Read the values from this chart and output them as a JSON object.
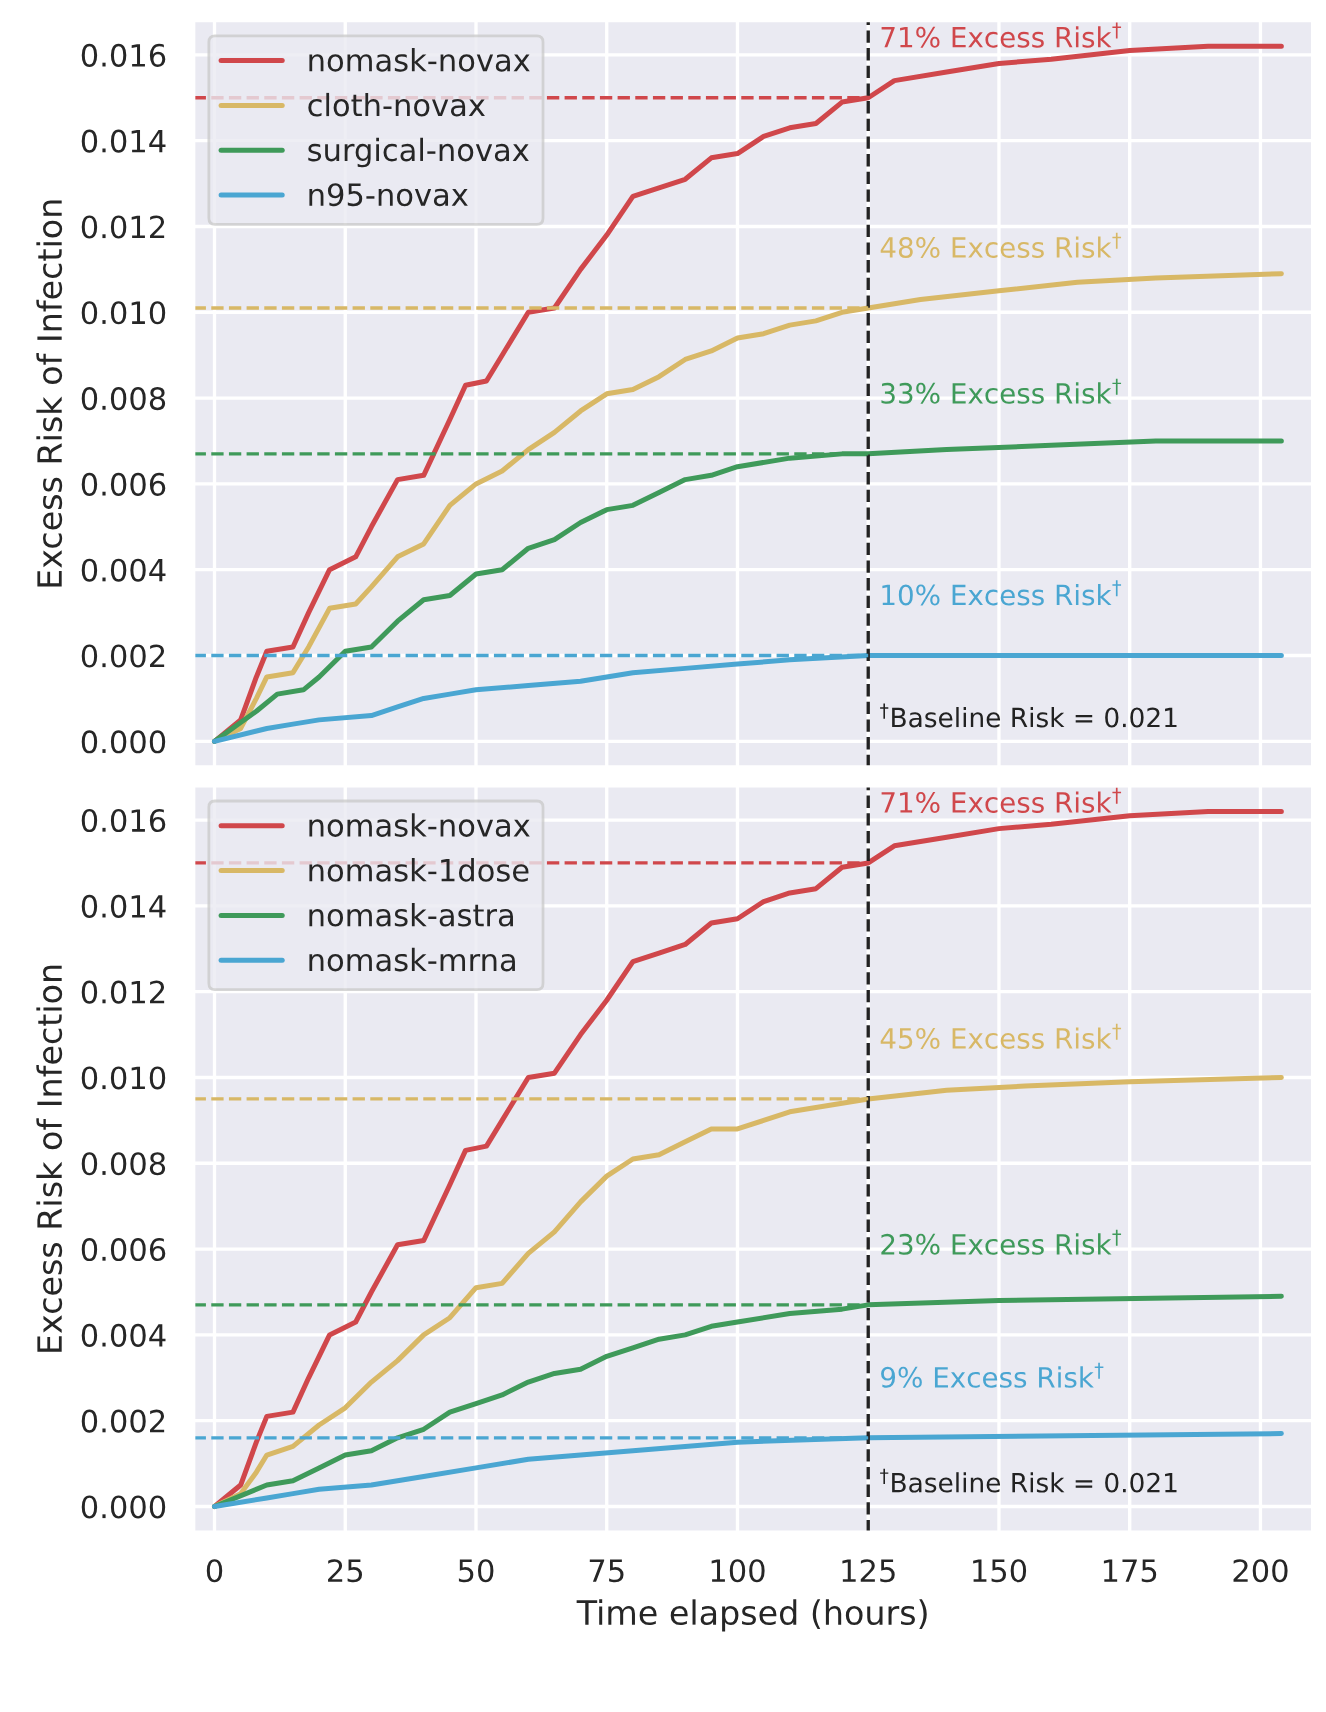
{
  "chart_data": [
    {
      "type": "line",
      "ylabel": "Excess Risk of Infection",
      "xlim": [
        -4,
        210
      ],
      "ylim": [
        -0.0006,
        0.0168
      ],
      "xticks": [
        0,
        25,
        50,
        75,
        100,
        125,
        150,
        175,
        200
      ],
      "yticks": [
        {
          "value": 0,
          "label": "0.000"
        },
        {
          "value": 0.002,
          "label": "0.002"
        },
        {
          "value": 0.004,
          "label": "0.004"
        },
        {
          "value": 0.006,
          "label": "0.006"
        },
        {
          "value": 0.008,
          "label": "0.008"
        },
        {
          "value": 0.01,
          "label": "0.010"
        },
        {
          "value": 0.012,
          "label": "0.012"
        },
        {
          "value": 0.014,
          "label": "0.014"
        },
        {
          "value": 0.016,
          "label": "0.016"
        }
      ],
      "tick_labels": "y",
      "grid": true,
      "legend": "top left",
      "series": [
        {
          "name": "nomask-novax",
          "color": "#d0474b",
          "x": [
            0,
            5,
            8,
            10,
            15,
            18,
            22,
            27,
            30,
            35,
            40,
            45,
            48,
            52,
            55,
            60,
            65,
            70,
            75,
            80,
            85,
            90,
            95,
            100,
            105,
            110,
            115,
            120,
            125,
            130,
            140,
            150,
            160,
            175,
            190,
            204
          ],
          "values": [
            0,
            0.0005,
            0.0015,
            0.0021,
            0.0022,
            0.003,
            0.004,
            0.0043,
            0.005,
            0.0061,
            0.0062,
            0.0075,
            0.0083,
            0.0084,
            0.009,
            0.01,
            0.0101,
            0.011,
            0.0118,
            0.0127,
            0.0129,
            0.0131,
            0.0136,
            0.0137,
            0.0141,
            0.0143,
            0.0144,
            0.0149,
            0.015,
            0.0154,
            0.0156,
            0.0158,
            0.0159,
            0.0161,
            0.0162,
            0.0162
          ]
        },
        {
          "name": "cloth-novax",
          "color": "#d8b866",
          "x": [
            0,
            5,
            8,
            10,
            15,
            18,
            22,
            27,
            30,
            35,
            40,
            45,
            50,
            55,
            60,
            65,
            70,
            75,
            80,
            85,
            90,
            95,
            100,
            105,
            110,
            115,
            120,
            125,
            135,
            150,
            165,
            180,
            204
          ],
          "values": [
            0,
            0.0003,
            0.001,
            0.0015,
            0.0016,
            0.0022,
            0.0031,
            0.0032,
            0.0036,
            0.0043,
            0.0046,
            0.0055,
            0.006,
            0.0063,
            0.0068,
            0.0072,
            0.0077,
            0.0081,
            0.0082,
            0.0085,
            0.0089,
            0.0091,
            0.0094,
            0.0095,
            0.0097,
            0.0098,
            0.01,
            0.0101,
            0.0103,
            0.0105,
            0.0107,
            0.0108,
            0.0109
          ]
        },
        {
          "name": "surgical-novax",
          "color": "#3f9a5a",
          "x": [
            0,
            8,
            12,
            17,
            20,
            25,
            30,
            35,
            40,
            45,
            50,
            55,
            60,
            65,
            70,
            75,
            80,
            85,
            90,
            95,
            100,
            110,
            120,
            125,
            140,
            160,
            180,
            204
          ],
          "values": [
            0,
            0.0007,
            0.0011,
            0.0012,
            0.0015,
            0.0021,
            0.0022,
            0.0028,
            0.0033,
            0.0034,
            0.0039,
            0.004,
            0.0045,
            0.0047,
            0.0051,
            0.0054,
            0.0055,
            0.0058,
            0.0061,
            0.0062,
            0.0064,
            0.0066,
            0.0067,
            0.0067,
            0.0068,
            0.0069,
            0.007,
            0.007
          ]
        },
        {
          "name": "n95-novax",
          "color": "#4aa6d2",
          "x": [
            0,
            10,
            15,
            20,
            30,
            35,
            40,
            45,
            50,
            60,
            70,
            80,
            90,
            100,
            110,
            125,
            150,
            204
          ],
          "values": [
            0,
            0.0003,
            0.0004,
            0.0005,
            0.0006,
            0.0008,
            0.001,
            0.0011,
            0.0012,
            0.0013,
            0.0014,
            0.0016,
            0.0017,
            0.0018,
            0.0019,
            0.002,
            0.002,
            0.002
          ]
        }
      ],
      "ref_lines": [
        {
          "axis": "x",
          "value": 125,
          "color": "#222222",
          "line_style": "dashed"
        },
        {
          "axis": "y",
          "value": 0.015,
          "label": "71% Excess Risk$^{†}$",
          "color": "#d0474b",
          "line_style": "dashed"
        },
        {
          "axis": "y",
          "value": 0.0101,
          "label": "48% Excess Risk$^{†}$",
          "color": "#d8b866",
          "line_style": "dashed"
        },
        {
          "axis": "y",
          "value": 0.0067,
          "label": "33% Excess Risk$^{†}$",
          "color": "#3f9a5a",
          "line_style": "dashed"
        },
        {
          "axis": "y",
          "value": 0.002,
          "label": "10% Excess Risk$^{†}$",
          "color": "#4aa6d2",
          "line_style": "dashed"
        }
      ],
      "annotations": [
        {
          "text": "$^{†}$Baseline Risk = 0.021",
          "x": 125,
          "y": 0.0002
        }
      ]
    },
    {
      "type": "line",
      "xlabel": "Time elapsed (hours)",
      "ylabel": "Excess Risk of Infection",
      "xlim": [
        -4,
        210
      ],
      "ylim": [
        -0.0006,
        0.0168
      ],
      "xticks": [
        0,
        25,
        50,
        75,
        100,
        125,
        150,
        175,
        200
      ],
      "yticks": [
        {
          "value": 0,
          "label": "0.000"
        },
        {
          "value": 0.002,
          "label": "0.002"
        },
        {
          "value": 0.004,
          "label": "0.004"
        },
        {
          "value": 0.006,
          "label": "0.006"
        },
        {
          "value": 0.008,
          "label": "0.008"
        },
        {
          "value": 0.01,
          "label": "0.010"
        },
        {
          "value": 0.012,
          "label": "0.012"
        },
        {
          "value": 0.014,
          "label": "0.014"
        },
        {
          "value": 0.016,
          "label": "0.016"
        }
      ],
      "grid": true,
      "legend": "top left",
      "series": [
        {
          "name": "nomask-novax",
          "color": "#d0474b",
          "x": [
            0,
            5,
            8,
            10,
            15,
            18,
            22,
            27,
            30,
            35,
            40,
            45,
            48,
            52,
            55,
            60,
            65,
            70,
            75,
            80,
            85,
            90,
            95,
            100,
            105,
            110,
            115,
            120,
            125,
            130,
            140,
            150,
            160,
            175,
            190,
            204
          ],
          "values": [
            0,
            0.0005,
            0.0015,
            0.0021,
            0.0022,
            0.003,
            0.004,
            0.0043,
            0.005,
            0.0061,
            0.0062,
            0.0075,
            0.0083,
            0.0084,
            0.009,
            0.01,
            0.0101,
            0.011,
            0.0118,
            0.0127,
            0.0129,
            0.0131,
            0.0136,
            0.0137,
            0.0141,
            0.0143,
            0.0144,
            0.0149,
            0.015,
            0.0154,
            0.0156,
            0.0158,
            0.0159,
            0.0161,
            0.0162,
            0.0162
          ]
        },
        {
          "name": "nomask-1dose",
          "color": "#d8b866",
          "x": [
            0,
            5,
            8,
            10,
            15,
            20,
            25,
            30,
            35,
            40,
            45,
            50,
            55,
            60,
            65,
            70,
            75,
            80,
            85,
            90,
            95,
            100,
            105,
            110,
            115,
            120,
            125,
            140,
            155,
            175,
            204
          ],
          "values": [
            0,
            0.0003,
            0.0008,
            0.0012,
            0.0014,
            0.0019,
            0.0023,
            0.0029,
            0.0034,
            0.004,
            0.0044,
            0.0051,
            0.0052,
            0.0059,
            0.0064,
            0.0071,
            0.0077,
            0.0081,
            0.0082,
            0.0085,
            0.0088,
            0.0088,
            0.009,
            0.0092,
            0.0093,
            0.0094,
            0.0095,
            0.0097,
            0.0098,
            0.0099,
            0.01
          ]
        },
        {
          "name": "nomask-astra",
          "color": "#3f9a5a",
          "x": [
            0,
            10,
            15,
            20,
            25,
            30,
            35,
            40,
            45,
            50,
            55,
            60,
            65,
            70,
            75,
            80,
            85,
            90,
            95,
            100,
            110,
            120,
            125,
            150,
            204
          ],
          "values": [
            0,
            0.0005,
            0.0006,
            0.0009,
            0.0012,
            0.0013,
            0.0016,
            0.0018,
            0.0022,
            0.0024,
            0.0026,
            0.0029,
            0.0031,
            0.0032,
            0.0035,
            0.0037,
            0.0039,
            0.004,
            0.0042,
            0.0043,
            0.0045,
            0.0046,
            0.0047,
            0.0048,
            0.0049
          ]
        },
        {
          "name": "nomask-mrna",
          "color": "#4aa6d2",
          "x": [
            0,
            10,
            15,
            20,
            30,
            40,
            50,
            60,
            70,
            80,
            90,
            100,
            125,
            204
          ],
          "values": [
            0,
            0.0002,
            0.0003,
            0.0004,
            0.0005,
            0.0007,
            0.0009,
            0.0011,
            0.0012,
            0.0013,
            0.0014,
            0.0015,
            0.0016,
            0.0017
          ]
        }
      ],
      "ref_lines": [
        {
          "axis": "x",
          "value": 125,
          "color": "#222222",
          "line_style": "dashed"
        },
        {
          "axis": "y",
          "value": 0.015,
          "label": "71% Excess Risk$^{†}$",
          "color": "#d0474b",
          "line_style": "dashed"
        },
        {
          "axis": "y",
          "value": 0.0095,
          "label": "45% Excess Risk$^{†}$",
          "color": "#d8b866",
          "line_style": "dashed"
        },
        {
          "axis": "y",
          "value": 0.0047,
          "label": "23% Excess Risk$^{†}$",
          "color": "#3f9a5a",
          "line_style": "dashed"
        },
        {
          "axis": "y",
          "value": 0.0016,
          "label": "9% Excess Risk$^{†}$",
          "color": "#4aa6d2",
          "line_style": "dashed"
        }
      ],
      "annotations": [
        {
          "text": "$^{†}$Baseline Risk = 0.021",
          "x": 125,
          "y": 0.0002
        }
      ]
    }
  ]
}
